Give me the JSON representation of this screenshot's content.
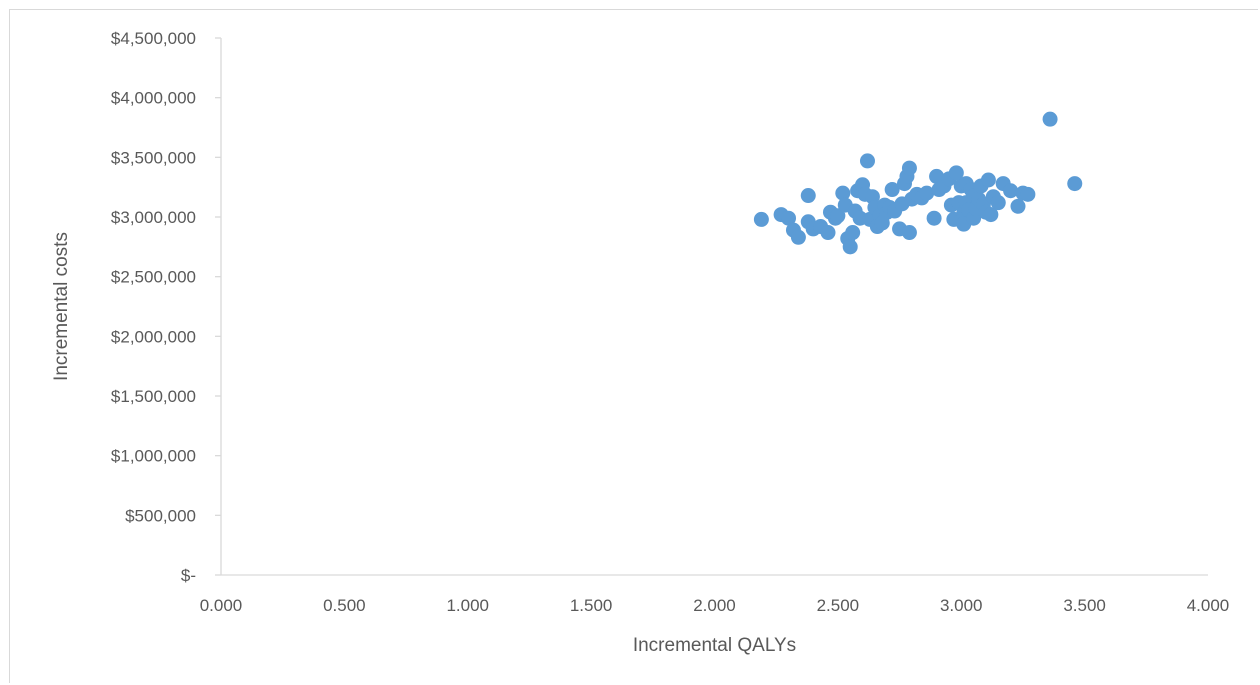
{
  "chart_data": {
    "type": "scatter",
    "title": "",
    "xlabel": "Incremental QALYs",
    "ylabel": "Incremental costs",
    "xlim": [
      0,
      4
    ],
    "ylim": [
      0,
      4500000
    ],
    "x_ticks": [
      "0.000",
      "0.500",
      "1.000",
      "1.500",
      "2.000",
      "2.500",
      "3.000",
      "3.500",
      "4.000"
    ],
    "y_ticks": [
      "$-",
      "$500,000",
      "$1,000,000",
      "$1,500,000",
      "$2,000,000",
      "$2,500,000",
      "$3,000,000",
      "$3,500,000",
      "$4,000,000",
      "$4,500,000"
    ],
    "grid": false,
    "legend": "none",
    "marker_color": "#5b9bd5",
    "series": [
      {
        "points": [
          [
            2.19,
            2980000
          ],
          [
            2.27,
            3020000
          ],
          [
            2.3,
            2990000
          ],
          [
            2.32,
            2890000
          ],
          [
            2.34,
            2830000
          ],
          [
            2.38,
            3180000
          ],
          [
            2.38,
            2960000
          ],
          [
            2.4,
            2900000
          ],
          [
            2.43,
            2920000
          ],
          [
            2.46,
            2870000
          ],
          [
            2.47,
            3040000
          ],
          [
            2.49,
            2990000
          ],
          [
            2.5,
            3010000
          ],
          [
            2.52,
            3200000
          ],
          [
            2.53,
            3100000
          ],
          [
            2.54,
            2820000
          ],
          [
            2.55,
            2750000
          ],
          [
            2.56,
            2870000
          ],
          [
            2.57,
            3050000
          ],
          [
            2.58,
            3220000
          ],
          [
            2.59,
            2990000
          ],
          [
            2.6,
            3270000
          ],
          [
            2.61,
            3190000
          ],
          [
            2.62,
            3470000
          ],
          [
            2.63,
            2980000
          ],
          [
            2.64,
            3170000
          ],
          [
            2.65,
            3080000
          ],
          [
            2.66,
            2920000
          ],
          [
            2.67,
            3010000
          ],
          [
            2.68,
            2950000
          ],
          [
            2.69,
            3100000
          ],
          [
            2.7,
            3040000
          ],
          [
            2.71,
            3080000
          ],
          [
            2.72,
            3230000
          ],
          [
            2.73,
            3050000
          ],
          [
            2.75,
            2900000
          ],
          [
            2.76,
            3110000
          ],
          [
            2.77,
            3280000
          ],
          [
            2.78,
            3340000
          ],
          [
            2.79,
            3410000
          ],
          [
            2.79,
            2870000
          ],
          [
            2.8,
            3150000
          ],
          [
            2.82,
            3190000
          ],
          [
            2.84,
            3160000
          ],
          [
            2.86,
            3200000
          ],
          [
            2.89,
            2990000
          ],
          [
            2.9,
            3340000
          ],
          [
            2.91,
            3230000
          ],
          [
            2.93,
            3260000
          ],
          [
            2.95,
            3320000
          ],
          [
            2.96,
            3100000
          ],
          [
            2.97,
            2980000
          ],
          [
            2.98,
            3370000
          ],
          [
            2.99,
            3120000
          ],
          [
            3.0,
            3260000
          ],
          [
            3.01,
            3030000
          ],
          [
            3.01,
            2940000
          ],
          [
            3.02,
            3280000
          ],
          [
            3.02,
            3120000
          ],
          [
            3.03,
            3060000
          ],
          [
            3.04,
            3230000
          ],
          [
            3.05,
            3180000
          ],
          [
            3.05,
            2990000
          ],
          [
            3.06,
            3070000
          ],
          [
            3.07,
            3150000
          ],
          [
            3.08,
            3260000
          ],
          [
            3.09,
            3110000
          ],
          [
            3.1,
            3040000
          ],
          [
            3.11,
            3310000
          ],
          [
            3.12,
            3020000
          ],
          [
            3.13,
            3170000
          ],
          [
            3.15,
            3120000
          ],
          [
            3.17,
            3280000
          ],
          [
            3.2,
            3220000
          ],
          [
            3.23,
            3090000
          ],
          [
            3.25,
            3200000
          ],
          [
            3.27,
            3190000
          ],
          [
            3.36,
            3820000
          ],
          [
            3.46,
            3280000
          ]
        ]
      }
    ]
  }
}
